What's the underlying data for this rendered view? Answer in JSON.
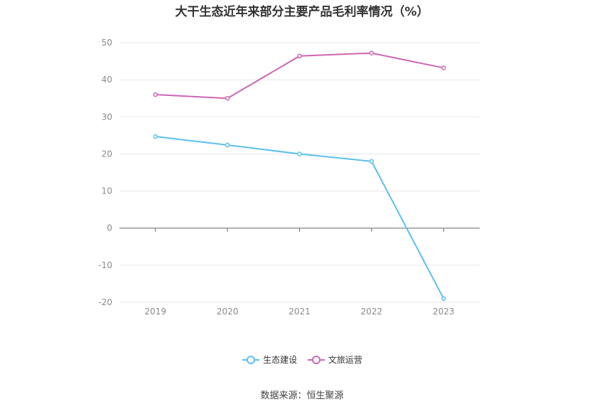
{
  "chart_data": {
    "type": "line",
    "title": "大干生态近年来部分主要产品毛利率情况（%）",
    "categories": [
      "2019",
      "2020",
      "2021",
      "2022",
      "2023"
    ],
    "ylim": [
      -20,
      50
    ],
    "yticks": [
      50,
      40,
      30,
      20,
      10,
      0,
      -10,
      -20
    ],
    "grid": true,
    "legend_position": "bottom",
    "series": [
      {
        "name": "生态建设",
        "color": "#5bc0eb",
        "values": [
          24.7,
          22.4,
          20.0,
          18.0,
          -19.0
        ]
      },
      {
        "name": "文旅运营",
        "color": "#cc66b3",
        "values": [
          36.0,
          35.0,
          46.4,
          47.2,
          43.2
        ]
      }
    ]
  },
  "source_text": "数据来源：恒生聚源"
}
